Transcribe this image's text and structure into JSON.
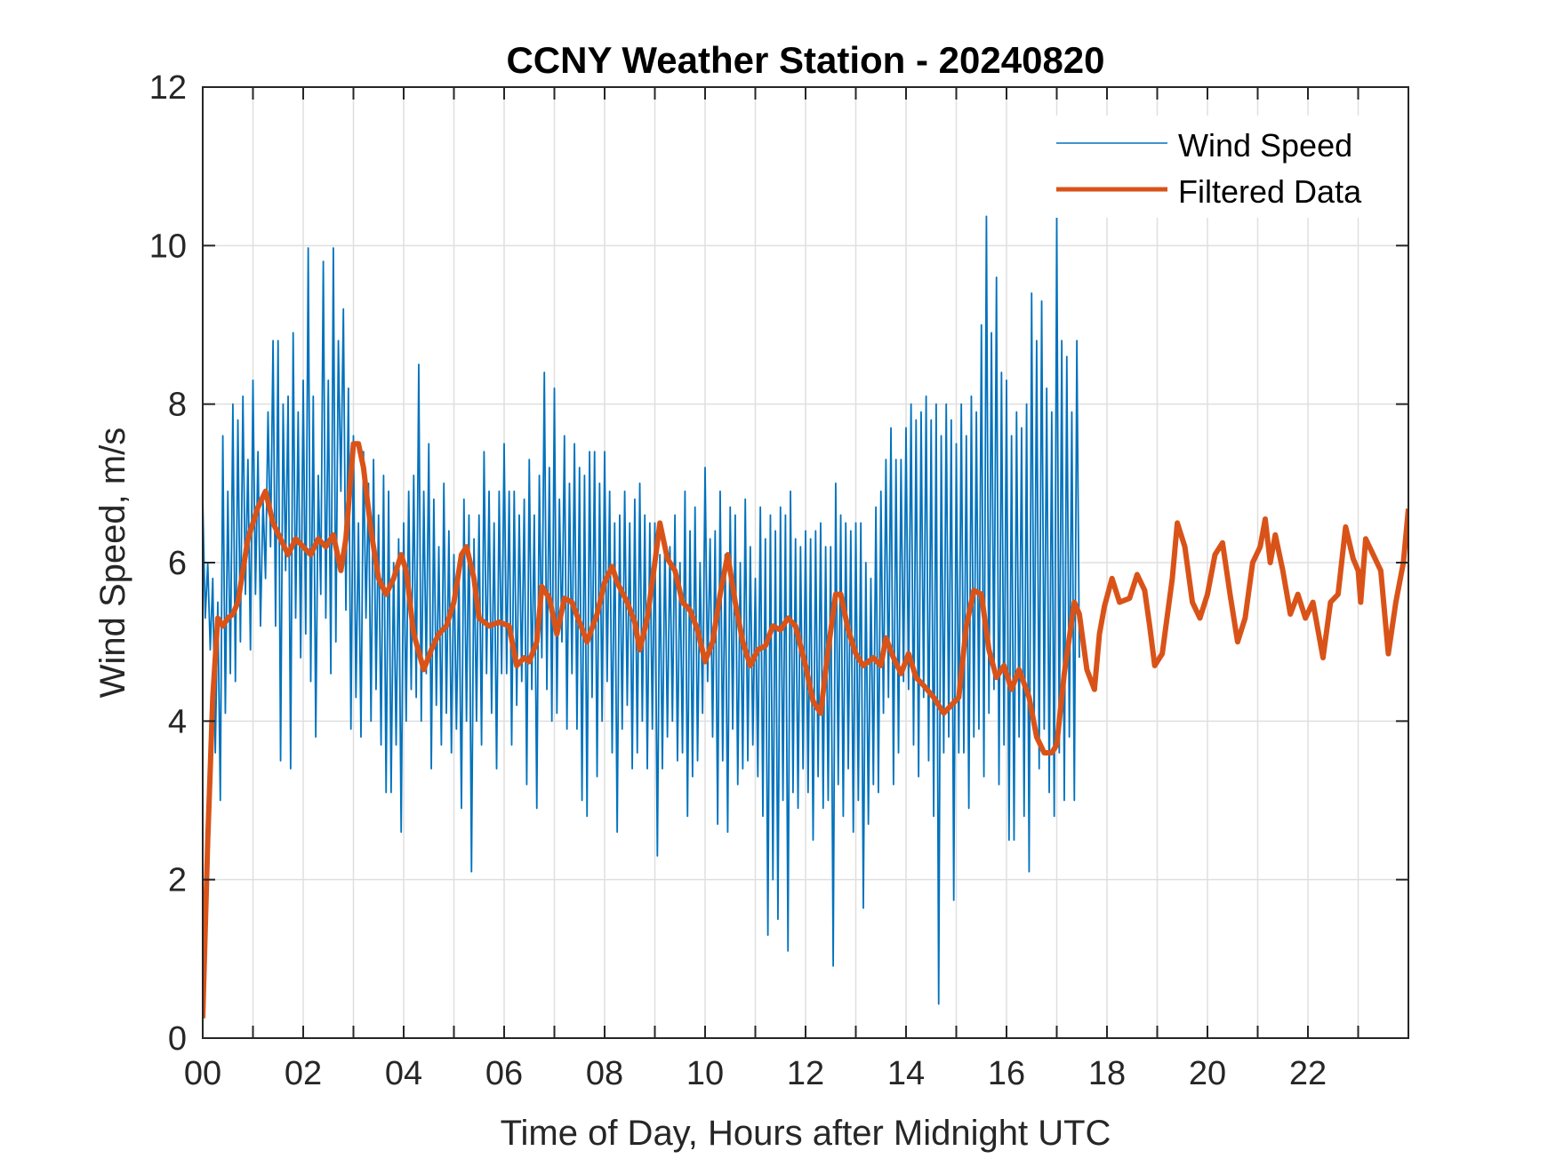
{
  "chart_data": {
    "type": "line",
    "title": "CCNY Weather Station - 20240820",
    "xlabel": "Time of Day, Hours after Midnight UTC",
    "ylabel": "Wind Speed, m/s",
    "xlim": [
      0,
      24
    ],
    "ylim": [
      0,
      12
    ],
    "grid": true,
    "x_ticks": [
      0,
      1,
      2,
      3,
      4,
      5,
      6,
      7,
      8,
      9,
      10,
      11,
      12,
      13,
      14,
      15,
      16,
      17,
      18,
      19,
      20,
      21,
      22,
      23
    ],
    "x_tick_labels": [
      {
        "value": 0,
        "label": "00"
      },
      {
        "value": 2,
        "label": "02"
      },
      {
        "value": 4,
        "label": "04"
      },
      {
        "value": 6,
        "label": "06"
      },
      {
        "value": 8,
        "label": "08"
      },
      {
        "value": 10,
        "label": "10"
      },
      {
        "value": 12,
        "label": "12"
      },
      {
        "value": 14,
        "label": "14"
      },
      {
        "value": 16,
        "label": "16"
      },
      {
        "value": 18,
        "label": "18"
      },
      {
        "value": 20,
        "label": "20"
      },
      {
        "value": 22,
        "label": "22"
      }
    ],
    "y_ticks": [
      {
        "value": 0,
        "label": "0"
      },
      {
        "value": 2,
        "label": "2"
      },
      {
        "value": 4,
        "label": "4"
      },
      {
        "value": 6,
        "label": "6"
      },
      {
        "value": 8,
        "label": "8"
      },
      {
        "value": 10,
        "label": "10"
      },
      {
        "value": 12,
        "label": "12"
      }
    ],
    "legend": {
      "placement": "top-right",
      "entries": [
        "Wind Speed",
        "Filtered Data"
      ]
    },
    "series": [
      {
        "name": "Wind Speed",
        "color": "#0072BD",
        "x_start": 0,
        "x_step": 0.05,
        "values": [
          6.8,
          5.3,
          6.0,
          4.9,
          5.8,
          3.6,
          5.5,
          3.0,
          7.6,
          4.1,
          6.9,
          4.6,
          8.0,
          4.5,
          7.8,
          5.0,
          8.1,
          5.6,
          7.3,
          4.9,
          8.3,
          5.6,
          7.4,
          5.2,
          6.8,
          5.8,
          7.9,
          6.2,
          8.8,
          5.2,
          8.8,
          3.5,
          8.0,
          5.9,
          8.1,
          3.4,
          8.9,
          5.3,
          7.9,
          4.8,
          8.3,
          5.1,
          9.97,
          4.5,
          8.1,
          3.8,
          7.1,
          5.6,
          9.8,
          5.3,
          8.3,
          4.6,
          9.97,
          5.0,
          8.8,
          6.9,
          9.2,
          5.4,
          8.2,
          3.9,
          7.6,
          4.3,
          6.5,
          3.8,
          7.4,
          5.3,
          7.0,
          4.0,
          7.3,
          4.4,
          6.6,
          3.7,
          7.1,
          3.1,
          6.9,
          3.1,
          6.0,
          3.7,
          6.3,
          2.6,
          6.5,
          4.0,
          6.9,
          4.4,
          7.1,
          4.3,
          8.5,
          4.0,
          6.9,
          4.6,
          7.5,
          3.4,
          6.8,
          4.2,
          6.2,
          3.7,
          7.0,
          4.1,
          6.4,
          3.6,
          6.1,
          3.9,
          5.9,
          2.9,
          6.8,
          4.0,
          6.6,
          2.1,
          6.3,
          4.0,
          6.6,
          3.7,
          7.4,
          4.6,
          6.9,
          4.1,
          6.5,
          3.4,
          6.9,
          4.6,
          7.5,
          4.6,
          6.9,
          3.7,
          6.9,
          4.2,
          6.6,
          4.5,
          6.8,
          3.2,
          7.3,
          4.4,
          6.6,
          2.9,
          7.1,
          4.8,
          8.4,
          4.4,
          7.2,
          4.0,
          8.2,
          4.1,
          6.8,
          5.0,
          7.6,
          3.9,
          7.0,
          4.6,
          7.5,
          3.9,
          7.2,
          3.0,
          7.1,
          2.8,
          7.4,
          4.3,
          7.4,
          3.3,
          7.0,
          4.0,
          7.4,
          4.5,
          6.9,
          3.6,
          6.5,
          2.6,
          6.6,
          3.9,
          6.9,
          4.2,
          6.5,
          3.4,
          6.8,
          3.6,
          7.0,
          4.0,
          6.6,
          3.4,
          6.5,
          3.9,
          6.5,
          2.3,
          6.1,
          3.4,
          6.3,
          3.8,
          6.2,
          4.0,
          6.6,
          3.5,
          6.0,
          3.6,
          6.9,
          2.8,
          6.4,
          3.3,
          6.7,
          3.5,
          6.0,
          4.1,
          7.2,
          4.5,
          6.3,
          3.8,
          6.4,
          2.7,
          6.9,
          3.5,
          6.1,
          2.6,
          6.7,
          3.9,
          6.6,
          3.2,
          6.0,
          3.4,
          6.8,
          3.5,
          6.2,
          3.7,
          5.8,
          3.3,
          6.7,
          2.8,
          6.3,
          1.3,
          6.6,
          2.0,
          6.4,
          1.5,
          6.7,
          3.0,
          6.6,
          1.1,
          6.9,
          3.1,
          6.3,
          2.9,
          6.2,
          3.4,
          6.4,
          3.1,
          6.3,
          2.5,
          6.4,
          3.3,
          6.5,
          2.9,
          6.2,
          3.0,
          6.2,
          0.91,
          7.0,
          3.2,
          6.6,
          2.8,
          6.5,
          3.4,
          6.4,
          2.6,
          6.5,
          3.0,
          6.5,
          1.64,
          6.0,
          2.7,
          5.8,
          3.2,
          6.7,
          3.1,
          6.9,
          4.1,
          7.3,
          4.3,
          7.7,
          3.2,
          7.3,
          3.6,
          7.3,
          4.5,
          7.7,
          4.4,
          8.0,
          3.7,
          7.8,
          3.3,
          7.9,
          4.3,
          8.1,
          3.5,
          7.8,
          2.8,
          8.0,
          0.43,
          7.6,
          3.6,
          8.0,
          3.8,
          7.8,
          1.74,
          7.5,
          3.6,
          8.0,
          3.6,
          7.6,
          2.9,
          8.1,
          3.8,
          7.9,
          3.9,
          9.0,
          3.3,
          10.37,
          4.1,
          8.9,
          4.4,
          9.6,
          3.2,
          8.4,
          3.7,
          8.3,
          2.5,
          7.6,
          2.5,
          7.9,
          3.8,
          7.7,
          2.8,
          8.0,
          2.1,
          9.4,
          3.9,
          8.8,
          3.4,
          9.3,
          3.9,
          8.2,
          3.1,
          7.9,
          2.8,
          10.37,
          3.6,
          8.8,
          3.0,
          8.6,
          3.8,
          7.9,
          3.0,
          8.8,
          4.8
        ]
      },
      {
        "name": "Filtered Data",
        "color": "#D95319",
        "points": [
          [
            0,
            0.25
          ],
          [
            0.1,
            2.5
          ],
          [
            0.2,
            4.3
          ],
          [
            0.3,
            5.3
          ],
          [
            0.4,
            5.2
          ],
          [
            0.5,
            5.3
          ],
          [
            0.6,
            5.35
          ],
          [
            0.7,
            5.5
          ],
          [
            0.8,
            5.9
          ],
          [
            0.9,
            6.3
          ],
          [
            1.0,
            6.5
          ],
          [
            1.1,
            6.7
          ],
          [
            1.25,
            6.9
          ],
          [
            1.4,
            6.5
          ],
          [
            1.55,
            6.3
          ],
          [
            1.7,
            6.1
          ],
          [
            1.85,
            6.3
          ],
          [
            2.0,
            6.2
          ],
          [
            2.15,
            6.1
          ],
          [
            2.3,
            6.3
          ],
          [
            2.45,
            6.2
          ],
          [
            2.6,
            6.35
          ],
          [
            2.75,
            5.9
          ],
          [
            2.85,
            6.3
          ],
          [
            3.0,
            7.5
          ],
          [
            3.1,
            7.5
          ],
          [
            3.2,
            7.2
          ],
          [
            3.35,
            6.4
          ],
          [
            3.5,
            5.8
          ],
          [
            3.65,
            5.6
          ],
          [
            3.8,
            5.8
          ],
          [
            3.95,
            6.1
          ],
          [
            4.05,
            5.9
          ],
          [
            4.2,
            5.1
          ],
          [
            4.4,
            4.65
          ],
          [
            4.55,
            4.9
          ],
          [
            4.7,
            5.1
          ],
          [
            4.85,
            5.2
          ],
          [
            5.0,
            5.5
          ],
          [
            5.15,
            6.1
          ],
          [
            5.25,
            6.2
          ],
          [
            5.4,
            5.8
          ],
          [
            5.5,
            5.3
          ],
          [
            5.7,
            5.2
          ],
          [
            5.9,
            5.25
          ],
          [
            6.1,
            5.2
          ],
          [
            6.25,
            4.7
          ],
          [
            6.4,
            4.8
          ],
          [
            6.5,
            4.75
          ],
          [
            6.65,
            5.0
          ],
          [
            6.75,
            5.7
          ],
          [
            6.9,
            5.55
          ],
          [
            7.05,
            5.1
          ],
          [
            7.2,
            5.55
          ],
          [
            7.35,
            5.5
          ],
          [
            7.5,
            5.25
          ],
          [
            7.65,
            5.0
          ],
          [
            7.85,
            5.35
          ],
          [
            8.0,
            5.75
          ],
          [
            8.15,
            5.95
          ],
          [
            8.25,
            5.75
          ],
          [
            8.45,
            5.5
          ],
          [
            8.6,
            5.25
          ],
          [
            8.7,
            4.9
          ],
          [
            8.85,
            5.3
          ],
          [
            9.0,
            6.0
          ],
          [
            9.1,
            6.5
          ],
          [
            9.25,
            6.05
          ],
          [
            9.4,
            5.9
          ],
          [
            9.55,
            5.5
          ],
          [
            9.7,
            5.4
          ],
          [
            9.85,
            5.15
          ],
          [
            10.0,
            4.75
          ],
          [
            10.15,
            5.0
          ],
          [
            10.3,
            5.6
          ],
          [
            10.45,
            6.1
          ],
          [
            10.6,
            5.5
          ],
          [
            10.75,
            5.0
          ],
          [
            10.9,
            4.7
          ],
          [
            11.05,
            4.9
          ],
          [
            11.2,
            4.95
          ],
          [
            11.35,
            5.2
          ],
          [
            11.5,
            5.15
          ],
          [
            11.65,
            5.3
          ],
          [
            11.8,
            5.2
          ],
          [
            12.0,
            4.7
          ],
          [
            12.15,
            4.25
          ],
          [
            12.3,
            4.1
          ],
          [
            12.45,
            4.9
          ],
          [
            12.6,
            5.6
          ],
          [
            12.7,
            5.6
          ],
          [
            12.85,
            5.15
          ],
          [
            13.0,
            4.85
          ],
          [
            13.15,
            4.7
          ],
          [
            13.35,
            4.8
          ],
          [
            13.5,
            4.7
          ],
          [
            13.6,
            5.05
          ],
          [
            13.75,
            4.8
          ],
          [
            13.9,
            4.6
          ],
          [
            14.05,
            4.85
          ],
          [
            14.2,
            4.55
          ],
          [
            14.35,
            4.45
          ],
          [
            14.55,
            4.3
          ],
          [
            14.75,
            4.1
          ],
          [
            14.9,
            4.2
          ],
          [
            15.05,
            4.3
          ],
          [
            15.2,
            5.2
          ],
          [
            15.35,
            5.65
          ],
          [
            15.5,
            5.6
          ],
          [
            15.65,
            4.9
          ],
          [
            15.8,
            4.55
          ],
          [
            15.95,
            4.7
          ],
          [
            16.1,
            4.4
          ],
          [
            16.25,
            4.65
          ],
          [
            16.45,
            4.3
          ],
          [
            16.6,
            3.8
          ],
          [
            16.75,
            3.6
          ],
          [
            16.9,
            3.6
          ],
          [
            17.0,
            3.7
          ],
          [
            17.15,
            4.6
          ],
          [
            17.35,
            5.5
          ],
          [
            17.45,
            5.35
          ],
          [
            17.6,
            4.65
          ],
          [
            17.75,
            4.4
          ],
          [
            17.85,
            5.1
          ],
          [
            17.95,
            5.45
          ],
          [
            18.1,
            5.8
          ],
          [
            18.25,
            5.5
          ],
          [
            18.45,
            5.55
          ],
          [
            18.6,
            5.85
          ],
          [
            18.75,
            5.65
          ],
          [
            18.85,
            5.2
          ],
          [
            18.95,
            4.7
          ],
          [
            19.1,
            4.85
          ],
          [
            19.3,
            5.8
          ],
          [
            19.4,
            6.5
          ],
          [
            19.55,
            6.2
          ],
          [
            19.7,
            5.5
          ],
          [
            19.85,
            5.3
          ],
          [
            20.0,
            5.6
          ],
          [
            20.15,
            6.1
          ],
          [
            20.3,
            6.25
          ],
          [
            20.45,
            5.6
          ],
          [
            20.6,
            5.0
          ],
          [
            20.75,
            5.3
          ],
          [
            20.9,
            6.0
          ],
          [
            21.05,
            6.2
          ],
          [
            21.15,
            6.55
          ],
          [
            21.25,
            6.0
          ],
          [
            21.35,
            6.35
          ],
          [
            21.5,
            5.9
          ],
          [
            21.65,
            5.35
          ],
          [
            21.8,
            5.6
          ],
          [
            21.95,
            5.3
          ],
          [
            22.1,
            5.5
          ],
          [
            22.3,
            4.8
          ],
          [
            22.45,
            5.5
          ],
          [
            22.6,
            5.6
          ],
          [
            22.75,
            6.45
          ],
          [
            22.9,
            6.05
          ],
          [
            23.0,
            5.9
          ],
          [
            23.05,
            5.5
          ],
          [
            23.15,
            6.3
          ],
          [
            23.3,
            6.1
          ],
          [
            23.45,
            5.9
          ],
          [
            23.6,
            4.85
          ],
          [
            23.75,
            5.5
          ],
          [
            23.9,
            6.0
          ],
          [
            24.0,
            6.68
          ]
        ]
      }
    ]
  }
}
